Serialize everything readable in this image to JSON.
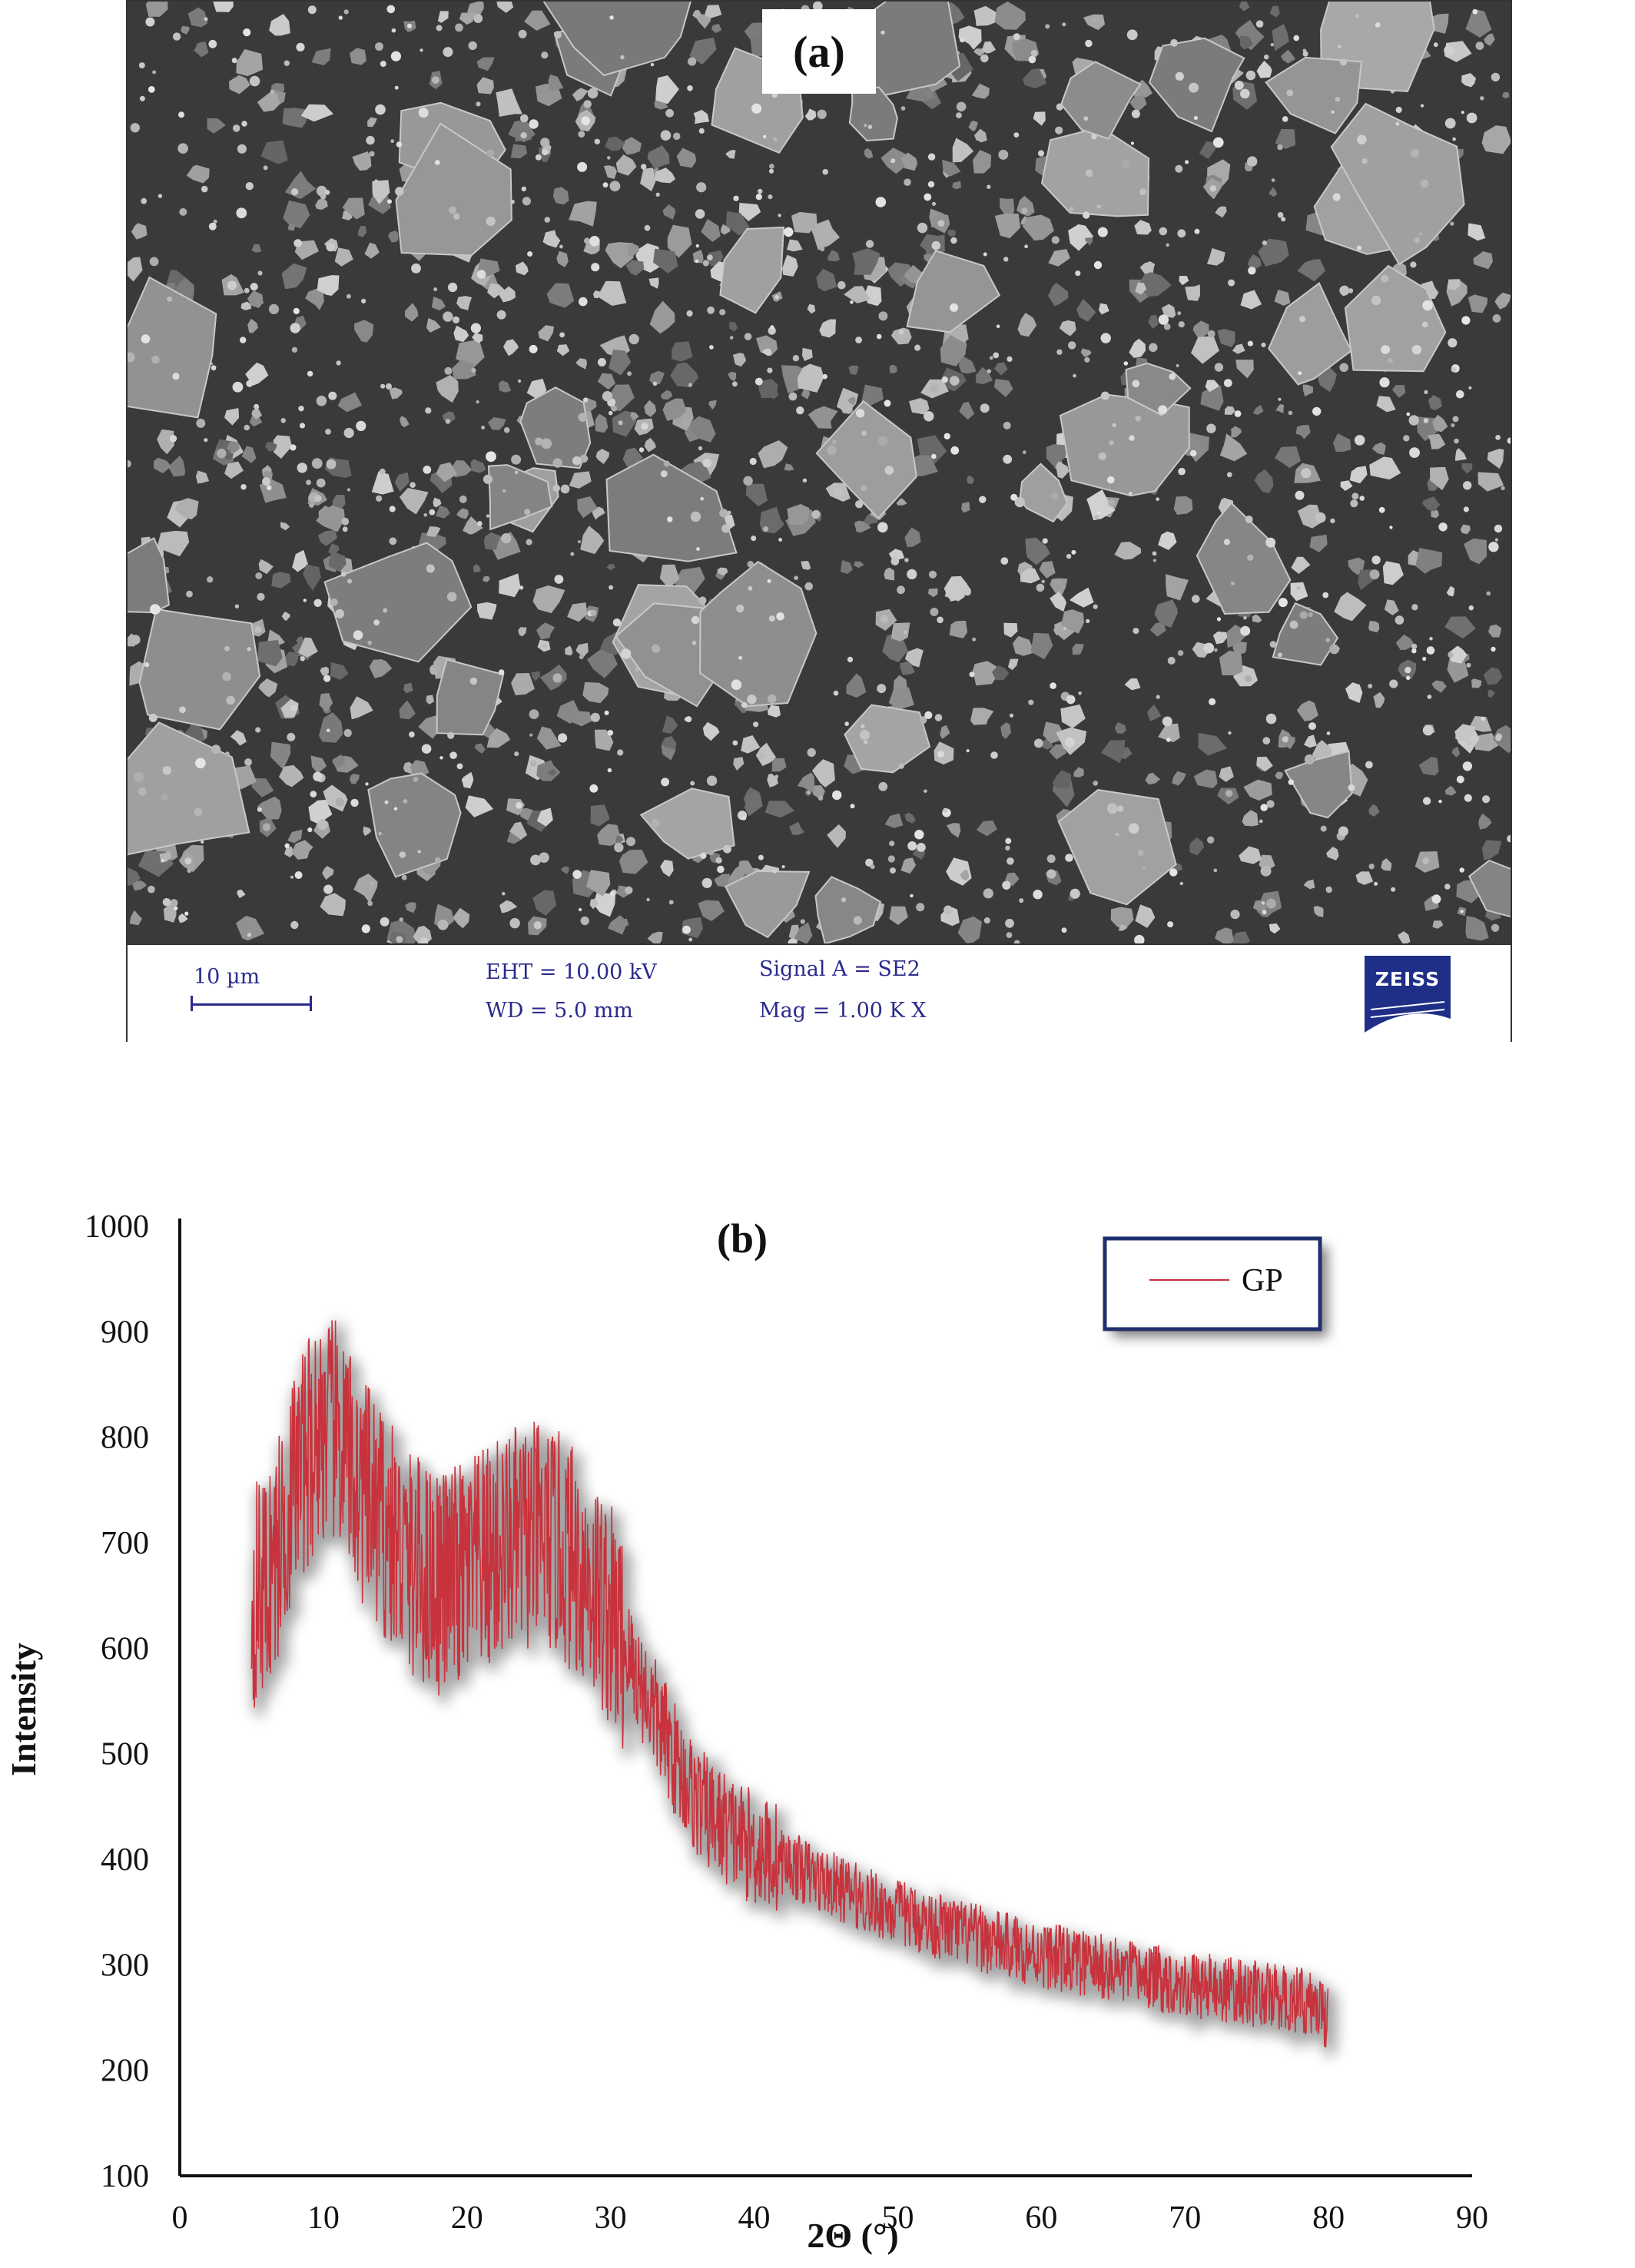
{
  "panel_a": {
    "label": "(a)",
    "scale_bar": "10 µm",
    "eht": "EHT = 10.00 kV",
    "wd": "WD =  5.0 mm",
    "signal": "Signal A = SE2",
    "mag": "Mag =    1.00 K X",
    "logo": "ZEISS"
  },
  "chart_data": {
    "type": "line",
    "title": "(b)",
    "xlabel": "2Θ (°)",
    "ylabel": "Intensity",
    "xlim": [
      0,
      90
    ],
    "ylim": [
      100,
      1000
    ],
    "xticks": [
      0,
      10,
      20,
      30,
      40,
      50,
      60,
      70,
      80,
      90
    ],
    "yticks": [
      100,
      200,
      300,
      400,
      500,
      600,
      700,
      800,
      900,
      1000
    ],
    "legend_position": "top-right",
    "series": [
      {
        "name": "GP",
        "color": "#c8323c",
        "x": [
          5,
          6,
          7,
          8,
          9,
          10,
          11,
          12,
          13,
          14,
          15,
          16,
          17,
          18,
          19,
          20,
          21,
          22,
          23,
          24,
          25,
          26,
          27,
          28,
          29,
          30,
          31,
          32,
          33,
          34,
          35,
          36,
          37,
          38,
          39,
          40,
          41,
          42,
          43,
          44,
          45,
          46,
          47,
          48,
          49,
          50,
          51,
          52,
          53,
          54,
          55,
          56,
          57,
          58,
          59,
          60,
          61,
          62,
          63,
          64,
          65,
          66,
          67,
          68,
          69,
          70,
          71,
          72,
          73,
          74,
          75,
          76,
          77,
          78,
          79,
          80
        ],
        "y": [
          650,
          660,
          700,
          760,
          790,
          810,
          800,
          770,
          740,
          720,
          700,
          680,
          670,
          665,
          665,
          670,
          680,
          690,
          700,
          705,
          705,
          700,
          690,
          675,
          655,
          630,
          600,
          570,
          540,
          510,
          480,
          455,
          440,
          430,
          420,
          410,
          405,
          398,
          392,
          385,
          378,
          372,
          366,
          360,
          355,
          350,
          345,
          340,
          336,
          332,
          328,
          324,
          320,
          317,
          313,
          310,
          307,
          304,
          301,
          298,
          295,
          292,
          290,
          287,
          285,
          282,
          280,
          278,
          276,
          274,
          272,
          270,
          268,
          266,
          262,
          250
        ]
      }
    ]
  }
}
